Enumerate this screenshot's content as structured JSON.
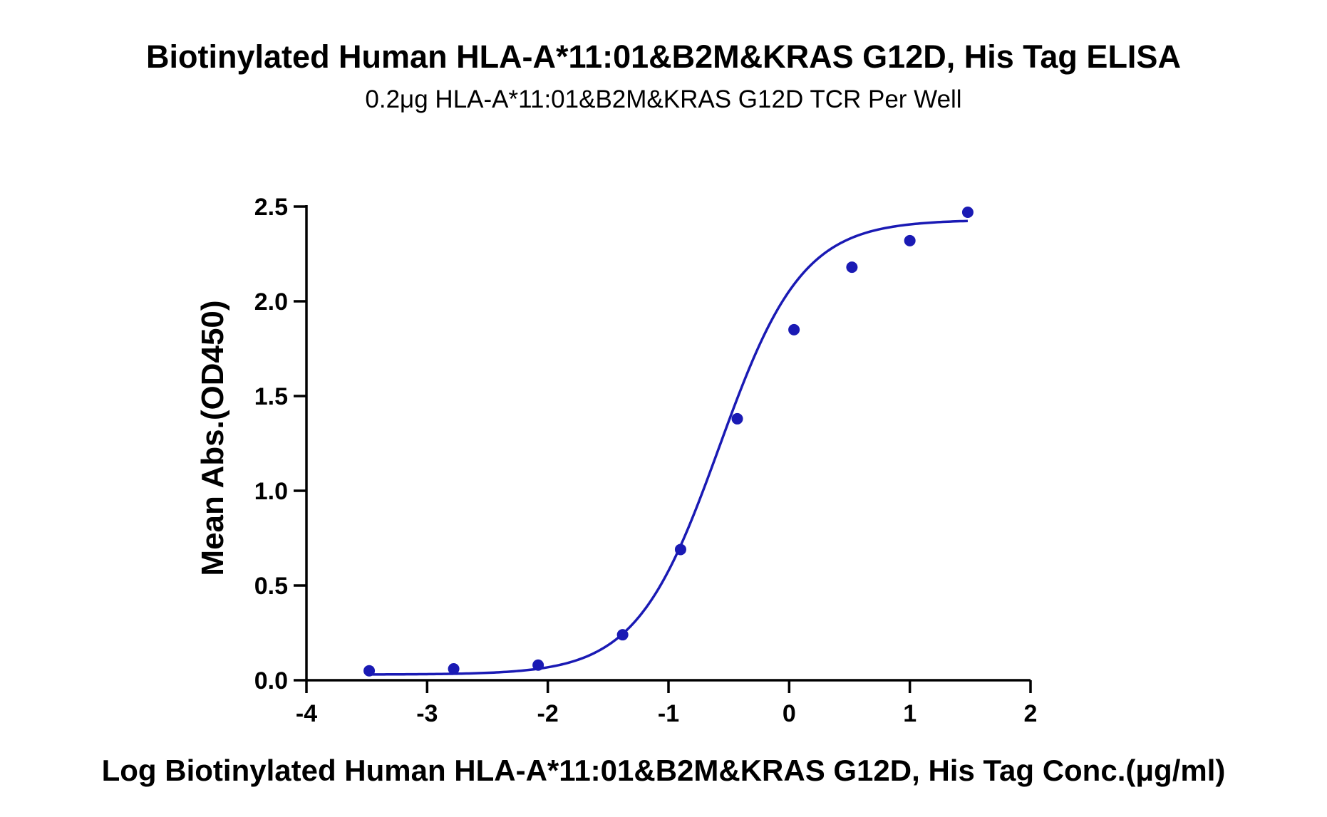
{
  "chart_data": {
    "type": "scatter",
    "title": "Biotinylated Human HLA-A*11:01&B2M&KRAS G12D, His Tag ELISA",
    "subtitle": "0.2μg HLA-A*11:01&B2M&KRAS G12D TCR Per Well",
    "xlabel": "Log Biotinylated Human HLA-A*11:01&B2M&KRAS G12D, His Tag Conc.(μg/ml)",
    "ylabel": "Mean Abs.(OD450)",
    "xlim": [
      -4,
      2
    ],
    "ylim": [
      0,
      2.5
    ],
    "x_ticks": [
      "-4",
      "-3",
      "-2",
      "-1",
      "0",
      "1",
      "2"
    ],
    "y_ticks": [
      "0.0",
      "0.5",
      "1.0",
      "1.5",
      "2.0",
      "2.5"
    ],
    "grid": false,
    "color": "#1a1ab4",
    "series": [
      {
        "x": [
          -3.48,
          -2.78,
          -2.08,
          -1.38,
          -0.9,
          -0.43,
          0.04,
          0.52,
          1.0,
          1.48
        ],
        "y": [
          0.05,
          0.06,
          0.08,
          0.24,
          0.69,
          1.38,
          1.85,
          2.18,
          2.32,
          2.47
        ]
      }
    ],
    "fit": {
      "model": "4PL",
      "bottom": 0.03,
      "top": 2.43,
      "log_ec50": -0.58,
      "hill_slope": 1.26,
      "x_range": [
        -3.48,
        1.48
      ]
    }
  }
}
